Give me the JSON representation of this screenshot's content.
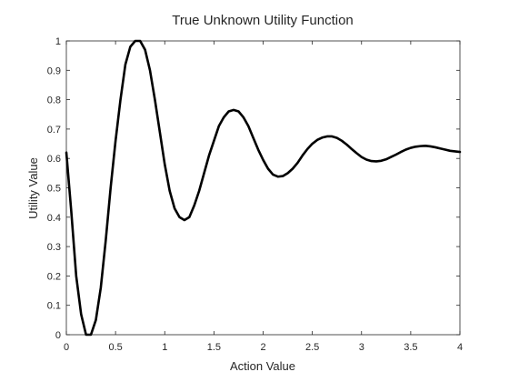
{
  "chart_data": {
    "type": "line",
    "title": "True Unknown Utility Function",
    "xlabel": "Action Value",
    "ylabel": "Utility Value",
    "xlim": [
      0,
      4
    ],
    "ylim": [
      0,
      1
    ],
    "x_ticks": [
      0,
      0.5,
      1,
      1.5,
      2,
      2.5,
      3,
      3.5,
      4
    ],
    "x_tick_labels": [
      "0",
      "0.5",
      "1",
      "1.5",
      "2",
      "2.5",
      "3",
      "3.5",
      "4"
    ],
    "y_ticks": [
      0,
      0.1,
      0.2,
      0.3,
      0.4,
      0.5,
      0.6,
      0.7,
      0.8,
      0.9,
      1
    ],
    "y_tick_labels": [
      "0",
      "0.1",
      "0.2",
      "0.3",
      "0.4",
      "0.5",
      "0.6",
      "0.7",
      "0.8",
      "0.9",
      "1"
    ],
    "grid": false,
    "box": true,
    "series": [
      {
        "color": "#000000",
        "x": [
          0,
          0.05,
          0.1,
          0.15,
          0.2,
          0.25,
          0.3,
          0.35,
          0.4,
          0.45,
          0.5,
          0.55,
          0.6,
          0.65,
          0.7,
          0.75,
          0.8,
          0.85,
          0.9,
          0.95,
          1.0,
          1.05,
          1.1,
          1.15,
          1.2,
          1.25,
          1.3,
          1.35,
          1.4,
          1.45,
          1.5,
          1.55,
          1.6,
          1.65,
          1.7,
          1.75,
          1.8,
          1.85,
          1.9,
          1.95,
          2.0,
          2.05,
          2.1,
          2.15,
          2.2,
          2.25,
          2.3,
          2.35,
          2.4,
          2.45,
          2.5,
          2.55,
          2.6,
          2.65,
          2.7,
          2.75,
          2.8,
          2.85,
          2.9,
          2.95,
          3.0,
          3.05,
          3.1,
          3.15,
          3.2,
          3.25,
          3.3,
          3.35,
          3.4,
          3.45,
          3.5,
          3.55,
          3.6,
          3.65,
          3.7,
          3.75,
          3.8,
          3.85,
          3.9,
          3.95,
          4.0
        ],
        "y": [
          0.62,
          0.42,
          0.2,
          0.07,
          0.0,
          0.0,
          0.05,
          0.16,
          0.32,
          0.5,
          0.66,
          0.8,
          0.92,
          0.98,
          1.0,
          1.0,
          0.97,
          0.9,
          0.8,
          0.69,
          0.58,
          0.49,
          0.43,
          0.4,
          0.39,
          0.4,
          0.44,
          0.49,
          0.55,
          0.61,
          0.66,
          0.71,
          0.74,
          0.76,
          0.765,
          0.76,
          0.74,
          0.71,
          0.67,
          0.63,
          0.595,
          0.565,
          0.545,
          0.538,
          0.54,
          0.55,
          0.565,
          0.585,
          0.61,
          0.632,
          0.65,
          0.663,
          0.671,
          0.675,
          0.675,
          0.67,
          0.66,
          0.647,
          0.632,
          0.618,
          0.605,
          0.596,
          0.591,
          0.59,
          0.592,
          0.597,
          0.605,
          0.613,
          0.622,
          0.63,
          0.636,
          0.64,
          0.642,
          0.643,
          0.641,
          0.638,
          0.634,
          0.63,
          0.626,
          0.624,
          0.622
        ]
      }
    ]
  }
}
